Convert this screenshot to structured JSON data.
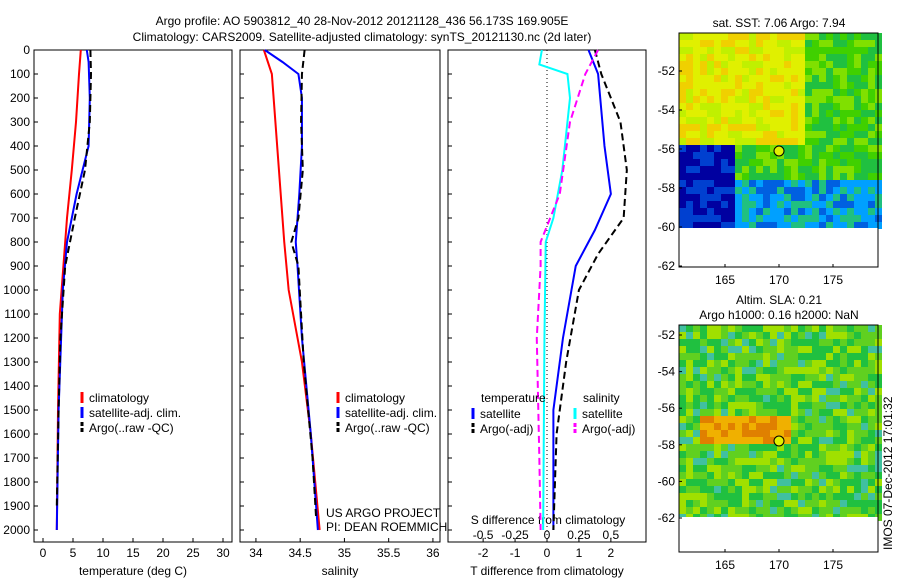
{
  "title": [
    "Argo profile: AO 5903812_40 28-Nov-2012 20121128_436 56.173S 169.905E",
    "Climatology: CARS2009. Satellite-adjusted climatology: synTS_20121130.nc (2d later)"
  ],
  "side_label": "IMOS 07-Dec-2012 17:01:32",
  "colors": {
    "clim": "#ff0000",
    "sat": "#0000ff",
    "argo": "#000000",
    "s_sat": "#00ffff",
    "s_argo": "#ff00ff"
  },
  "chart_data": [
    {
      "type": "line",
      "xlabel": "temperature (deg C)",
      "ylabel": "",
      "xlim": [
        -1.5,
        31.5
      ],
      "ylim": [
        2050,
        0
      ],
      "xticks": [
        0,
        5,
        10,
        15,
        20,
        25,
        30
      ],
      "yticks": [
        0,
        100,
        200,
        300,
        400,
        500,
        600,
        700,
        800,
        900,
        1000,
        1100,
        1200,
        1300,
        1400,
        1500,
        1600,
        1700,
        1800,
        1900,
        2000
      ],
      "legend": [
        "climatology",
        "satellite-adj. clim.",
        "Argo(..raw -QC)"
      ],
      "series": [
        {
          "name": "climatology",
          "color": "clim",
          "dash": false,
          "depth": [
            0,
            100,
            300,
            500,
            700,
            900,
            1100,
            1500,
            2000
          ],
          "values": [
            6.3,
            6.0,
            5.5,
            4.8,
            4.0,
            3.4,
            2.8,
            2.5,
            2.3
          ]
        },
        {
          "name": "satellite-adj. clim.",
          "color": "sat",
          "dash": false,
          "depth": [
            0,
            50,
            200,
            400,
            600,
            800,
            1000,
            1500,
            2000
          ],
          "values": [
            7.3,
            7.6,
            7.8,
            7.6,
            5.6,
            4.0,
            3.3,
            2.6,
            2.3
          ]
        },
        {
          "name": "Argo(..raw -QC)",
          "color": "argo",
          "dash": true,
          "depth": [
            0,
            100,
            300,
            500,
            700,
            900,
            1200,
            1500,
            1900
          ],
          "values": [
            7.9,
            8.0,
            7.8,
            7.0,
            5.3,
            3.7,
            2.9,
            2.6,
            2.3
          ]
        }
      ]
    },
    {
      "type": "line",
      "xlabel": "salinity",
      "xlim": [
        33.82,
        36.08
      ],
      "ylim": [
        2050,
        0
      ],
      "xticks": [
        34,
        34.5,
        35,
        35.5,
        36
      ],
      "legend": [
        "climatology",
        "satellite-adj. clim.",
        "Argo(..raw -QC)"
      ],
      "annotation": [
        "US ARGO PROJECT",
        "PI: DEAN ROEMMICH"
      ],
      "series": [
        {
          "name": "climatology",
          "color": "clim",
          "dash": false,
          "depth": [
            0,
            100,
            300,
            500,
            800,
            1000,
            1300,
            1600,
            2000
          ],
          "values": [
            34.09,
            34.18,
            34.22,
            34.26,
            34.32,
            34.37,
            34.52,
            34.62,
            34.72
          ]
        },
        {
          "name": "satellite-adj. clim.",
          "color": "sat",
          "dash": false,
          "depth": [
            0,
            50,
            100,
            200,
            400,
            600,
            800,
            900,
            1200,
            1600,
            2000
          ],
          "values": [
            34.1,
            34.3,
            34.48,
            34.52,
            34.52,
            34.49,
            34.45,
            34.47,
            34.52,
            34.62,
            34.7
          ]
        },
        {
          "name": "Argo(..raw -QC)",
          "color": "argo",
          "dash": true,
          "depth": [
            0,
            100,
            300,
            500,
            700,
            800,
            900,
            1300,
            1700,
            1950
          ],
          "values": [
            34.55,
            34.52,
            34.51,
            34.53,
            34.48,
            34.4,
            34.48,
            34.54,
            34.64,
            34.68
          ]
        }
      ]
    },
    {
      "type": "line",
      "xlabel": "T difference from climatology",
      "x2label": "S difference from climatology",
      "xlim": [
        -3.1,
        3.1
      ],
      "ylim": [
        2050,
        0
      ],
      "xticks": [
        -2,
        -1,
        0,
        1,
        2
      ],
      "x2ticks": [
        "-0.5",
        "-0.25",
        "0",
        "0.25",
        "0.5"
      ],
      "legend_t": {
        "title": "temperature",
        "items": [
          "satellite",
          "Argo(-adj)"
        ]
      },
      "legend_s": {
        "title": "salinity",
        "items": [
          "satellite",
          "Argo(-adj)"
        ]
      },
      "series": [
        {
          "name": "T satellite",
          "color": "sat",
          "dash": false,
          "scale": 1,
          "depth": [
            0,
            100,
            400,
            600,
            750,
            900,
            1200,
            1500,
            2000
          ],
          "values": [
            1.3,
            1.6,
            1.8,
            2.0,
            1.5,
            0.9,
            0.5,
            0.2,
            0.2
          ]
        },
        {
          "name": "T Argo(-adj)",
          "color": "argo",
          "dash": true,
          "scale": 1,
          "depth": [
            0,
            100,
            300,
            500,
            700,
            850,
            1000,
            1300,
            1600,
            2000
          ],
          "values": [
            1.5,
            1.7,
            2.3,
            2.5,
            2.4,
            1.6,
            1.0,
            0.6,
            0.3,
            0.2
          ]
        },
        {
          "name": "S satellite",
          "color": "s_sat",
          "dash": false,
          "scale": 4,
          "depth": [
            0,
            60,
            100,
            200,
            500,
            700,
            800,
            1200,
            2000
          ],
          "values": [
            -0.04,
            -0.06,
            0.16,
            0.18,
            0.12,
            0.05,
            -0.01,
            -0.02,
            -0.03
          ]
        },
        {
          "name": "S Argo(-adj)",
          "color": "s_argo",
          "dash": true,
          "scale": 4,
          "depth": [
            0,
            100,
            300,
            600,
            800,
            900,
            1200,
            1700,
            2000
          ],
          "values": [
            0.4,
            0.3,
            0.18,
            0.1,
            -0.05,
            -0.05,
            -0.08,
            -0.06,
            -0.05
          ]
        }
      ]
    }
  ],
  "maps": [
    {
      "title": [
        "sat. SST: 7.06 Argo: 7.94"
      ],
      "xticks": [
        "165",
        "170",
        "175"
      ],
      "yticks": [
        "-52",
        "-54",
        "-56",
        "-58",
        "-60",
        "-62"
      ]
    },
    {
      "title": [
        "Altim. SLA: 0.21",
        "Argo h1000: 0.16 h2000: NaN"
      ],
      "xticks": [
        "165",
        "170",
        "175"
      ],
      "yticks": [
        "-52",
        "-54",
        "-56",
        "-58",
        "-60",
        "-62"
      ]
    }
  ]
}
